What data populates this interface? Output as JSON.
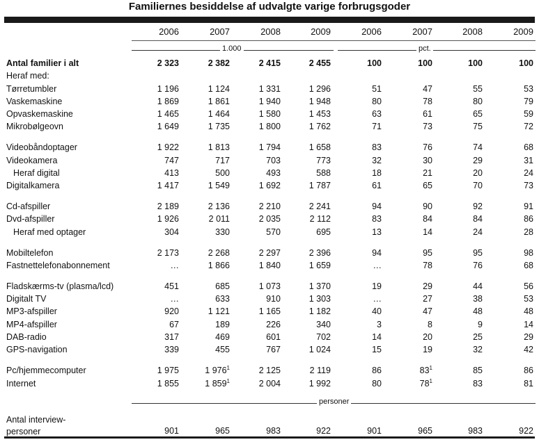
{
  "title": "Familiernes besiddelse af udvalgte varige forbrugsgoder",
  "years": [
    "2006",
    "2007",
    "2008",
    "2009",
    "2006",
    "2007",
    "2008",
    "2009"
  ],
  "unit_thousand": "1.000",
  "unit_pct": "pct.",
  "unit_persons": "personer",
  "rows": [
    {
      "label": "Antal familier i alt",
      "bold": true,
      "values": [
        "2 323",
        "2 382",
        "2 415",
        "2 455",
        "100",
        "100",
        "100",
        "100"
      ]
    },
    {
      "label": "Heraf med:",
      "values": []
    },
    {
      "label": "Tørretumbler",
      "values": [
        "1 196",
        "1 124",
        "1 331",
        "1 296",
        "51",
        "47",
        "55",
        "53"
      ]
    },
    {
      "label": "Vaskemaskine",
      "values": [
        "1 869",
        "1 861",
        "1 940",
        "1 948",
        "80",
        "78",
        "80",
        "79"
      ]
    },
    {
      "label": "Opvaskemaskine",
      "values": [
        "1 465",
        "1 464",
        "1 580",
        "1 453",
        "63",
        "61",
        "65",
        "59"
      ]
    },
    {
      "label": "Mikrobølgeovn",
      "values": [
        "1 649",
        "1 735",
        "1 800",
        "1 762",
        "71",
        "73",
        "75",
        "72"
      ]
    },
    {
      "gap": true
    },
    {
      "label": "Videobåndoptager",
      "values": [
        "1 922",
        "1 813",
        "1 794",
        "1 658",
        "83",
        "76",
        "74",
        "68"
      ]
    },
    {
      "label": "Videokamera",
      "values": [
        "747",
        "717",
        "703",
        "773",
        "32",
        "30",
        "29",
        "31"
      ]
    },
    {
      "label": "Heraf digital",
      "indent": true,
      "values": [
        "413",
        "500",
        "493",
        "588",
        "18",
        "21",
        "20",
        "24"
      ]
    },
    {
      "label": "Digitalkamera",
      "values": [
        "1 417",
        "1 549",
        "1 692",
        "1 787",
        "61",
        "65",
        "70",
        "73"
      ]
    },
    {
      "gap": true
    },
    {
      "label": "Cd-afspiller",
      "values": [
        "2 189",
        "2 136",
        "2 210",
        "2 241",
        "94",
        "90",
        "92",
        "91"
      ]
    },
    {
      "label": "Dvd-afspiller",
      "values": [
        "1 926",
        "2 011",
        "2 035",
        "2 112",
        "83",
        "84",
        "84",
        "86"
      ]
    },
    {
      "label": "Heraf med optager",
      "indent": true,
      "values": [
        "304",
        "330",
        "570",
        "695",
        "13",
        "14",
        "24",
        "28"
      ]
    },
    {
      "gap": true
    },
    {
      "label": "Mobiltelefon",
      "values": [
        "2 173",
        "2 268",
        "2 297",
        "2 396",
        "94",
        "95",
        "95",
        "98"
      ]
    },
    {
      "label": "Fastnettelefonabonnement",
      "values": [
        "…",
        "1 866",
        "1 840",
        "1 659",
        "…",
        "78",
        "76",
        "68"
      ]
    },
    {
      "gap": true
    },
    {
      "label": "Fladskærms-tv (plasma/lcd)",
      "values": [
        "451",
        "685",
        "1 073",
        "1 370",
        "19",
        "29",
        "44",
        "56"
      ]
    },
    {
      "label": "Digitalt TV",
      "values": [
        "…",
        "633",
        "910",
        "1 303",
        "…",
        "27",
        "38",
        "53"
      ]
    },
    {
      "label": "MP3-afspiller",
      "values": [
        "920",
        "1 121",
        "1 165",
        "1 182",
        "40",
        "47",
        "48",
        "48"
      ]
    },
    {
      "label": "MP4-afspiller",
      "values": [
        "67",
        "189",
        "226",
        "340",
        "3",
        "8",
        "9",
        "14"
      ]
    },
    {
      "label": "DAB-radio",
      "values": [
        "317",
        "469",
        "601",
        "702",
        "14",
        "20",
        "25",
        "29"
      ]
    },
    {
      "label": "GPS-navigation",
      "values": [
        "339",
        "455",
        "767",
        "1 024",
        "15",
        "19",
        "32",
        "42"
      ]
    },
    {
      "gap": true
    },
    {
      "label": "Pc/hjemmecomputer",
      "values": [
        "1 975",
        "1 976",
        "2 125",
        "2 119",
        "86",
        "83",
        "85",
        "86"
      ],
      "sup": {
        "1": "1",
        "5": "1"
      }
    },
    {
      "label": "Internet",
      "values": [
        "1 855",
        "1 859",
        "2 004",
        "1 992",
        "80",
        "78",
        "83",
        "81"
      ],
      "sup": {
        "1": "1",
        "5": "1"
      }
    }
  ],
  "interview": {
    "label_line1": "Antal interview-",
    "label_line2": "personer",
    "values": [
      "901",
      "965",
      "983",
      "922",
      "901",
      "965",
      "983",
      "922"
    ]
  }
}
